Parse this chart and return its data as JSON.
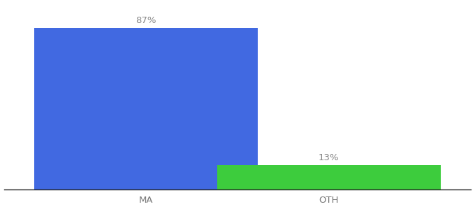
{
  "categories": [
    "MA",
    "OTH"
  ],
  "values": [
    87,
    13
  ],
  "bar_colors": [
    "#4169e1",
    "#3dcc3d"
  ],
  "value_labels": [
    "87%",
    "13%"
  ],
  "background_color": "#ffffff",
  "ylim": [
    0,
    100
  ],
  "bar_width": 0.55,
  "label_fontsize": 9.5,
  "tick_fontsize": 9.5,
  "tick_color": "#777777",
  "label_color": "#888888"
}
